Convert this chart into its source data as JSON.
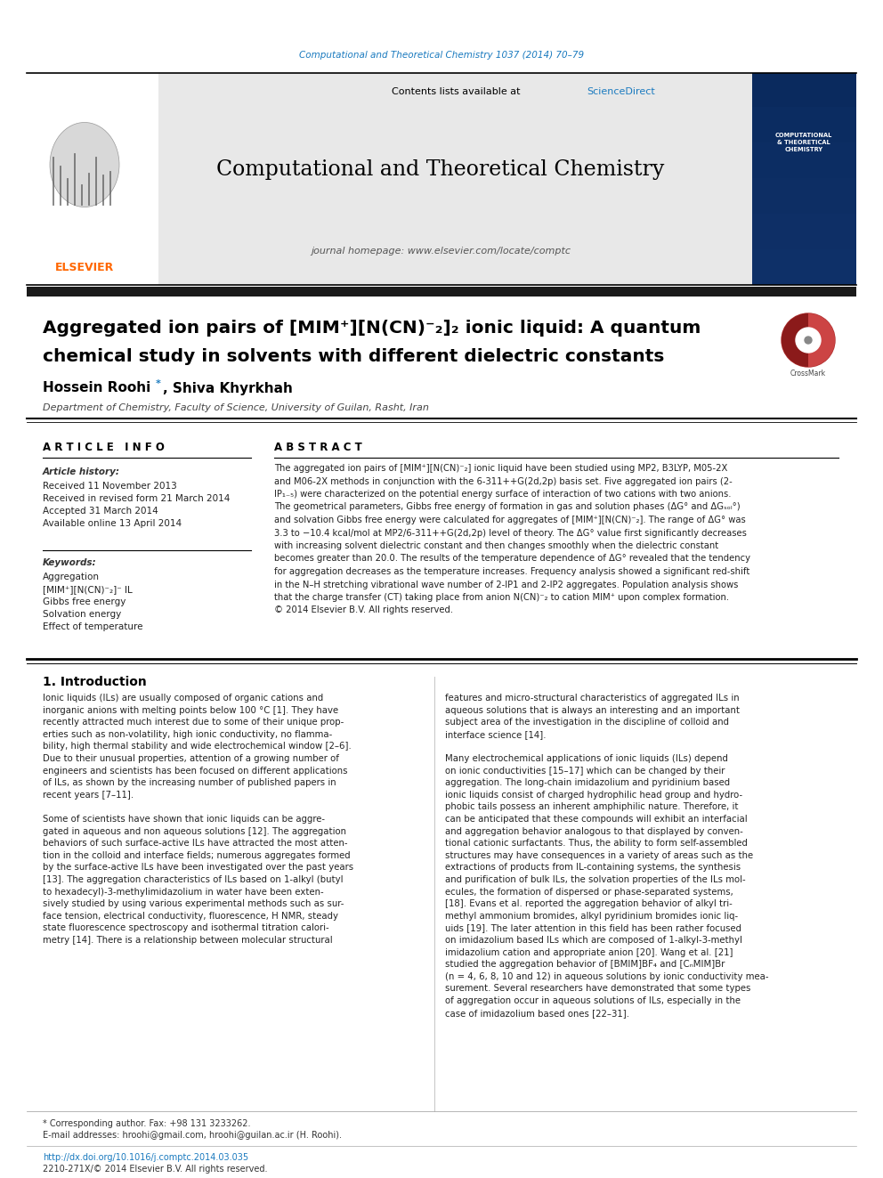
{
  "top_journal_text": "Computational and Theoretical Chemistry 1037 (2014) 70–79",
  "journal_header_text": "Computational and Theoretical Chemistry",
  "contents_text": "Contents lists available at ScienceDirect",
  "homepage_text": "journal homepage: www.elsevier.com/locate/comptc",
  "elsevier_color": "#FF6600",
  "sciencedirect_color": "#1a7abf",
  "header_bg": "#e8e8e8",
  "black_bar_color": "#1a1a1a",
  "title_line1": "Aggregated ion pairs of [MIM⁺][N(CN)⁻₂]₂ ionic liquid: A quantum",
  "title_line2": "chemical study in solvents with different dielectric constants",
  "authors_bold": "Hossein Roohi ",
  "authors_rest": ", Shiva Khyrkhah",
  "affiliation": "Department of Chemistry, Faculty of Science, University of Guilan, Rasht, Iran",
  "article_info_header": "A R T I C L E   I N F O",
  "abstract_header": "A B S T R A C T",
  "article_history_label": "Article history:",
  "received_text": "Received 11 November 2013",
  "revised_text": "Received in revised form 21 March 2014",
  "accepted_text": "Accepted 31 March 2014",
  "available_text": "Available online 13 April 2014",
  "keywords_label": "Keywords:",
  "keyword1": "Aggregation",
  "keyword2": "[MIM⁺][N(CN)⁻₂]⁻ IL",
  "keyword3": "Gibbs free energy",
  "keyword4": "Solvation energy",
  "keyword5": "Effect of temperature",
  "footnote_star": "* Corresponding author. Fax: +98 131 3233262.",
  "footnote_email": "E-mail addresses: hroohi@gmail.com, hroohi@guilan.ac.ir (H. Roohi).",
  "doi_text": "http://dx.doi.org/10.1016/j.comptc.2014.03.035",
  "issn_text": "2210-271X/© 2014 Elsevier B.V. All rights reserved.",
  "top_text_color": "#1a7abf",
  "bg_color": "#ffffff",
  "abstract_lines": [
    "The aggregated ion pairs of [MIM⁺][N(CN)⁻₂] ionic liquid have been studied using MP2, B3LYP, M05-2X",
    "and M06-2X methods in conjunction with the 6-311++G(2d,2p) basis set. Five aggregated ion pairs (2-",
    "IP₁₋₅) were characterized on the potential energy surface of interaction of two cations with two anions.",
    "The geometrical parameters, Gibbs free energy of formation in gas and solution phases (ΔG° and ΔGₛₒₗ°)",
    "and solvation Gibbs free energy were calculated for aggregates of [MIM⁺][N(CN)⁻₂]. The range of ΔG° was",
    "3.3 to −10.4 kcal/mol at MP2/6-311++G(2d,2p) level of theory. The ΔG° value first significantly decreases",
    "with increasing solvent dielectric constant and then changes smoothly when the dielectric constant",
    "becomes greater than 20.0. The results of the temperature dependence of ΔG° revealed that the tendency",
    "for aggregation decreases as the temperature increases. Frequency analysis showed a significant red-shift",
    "in the N–H stretching vibrational wave number of 2-IP1 and 2-IP2 aggregates. Population analysis shows",
    "that the charge transfer (CT) taking place from anion N(CN)⁻₂ to cation MIM⁺ upon complex formation.",
    "© 2014 Elsevier B.V. All rights reserved."
  ],
  "intro_header": "1. Introduction",
  "intro_col1_lines": [
    "Ionic liquids (ILs) are usually composed of organic cations and",
    "inorganic anions with melting points below 100 °C [1]. They have",
    "recently attracted much interest due to some of their unique prop-",
    "erties such as non-volatility, high ionic conductivity, no flamma-",
    "bility, high thermal stability and wide electrochemical window [2–6].",
    "Due to their unusual properties, attention of a growing number of",
    "engineers and scientists has been focused on different applications",
    "of ILs, as shown by the increasing number of published papers in",
    "recent years [7–11].",
    "",
    "Some of scientists have shown that ionic liquids can be aggre-",
    "gated in aqueous and non aqueous solutions [12]. The aggregation",
    "behaviors of such surface-active ILs have attracted the most atten-",
    "tion in the colloid and interface fields; numerous aggregates formed",
    "by the surface-active ILs have been investigated over the past years",
    "[13]. The aggregation characteristics of ILs based on 1-alkyl (butyl",
    "to hexadecyl)-3-methylimidazolium in water have been exten-",
    "sively studied by using various experimental methods such as sur-",
    "face tension, electrical conductivity, fluorescence, H NMR, steady",
    "state fluorescence spectroscopy and isothermal titration calori-",
    "metry [14]. There is a relationship between molecular structural"
  ],
  "intro_col2_lines": [
    "features and micro-structural characteristics of aggregated ILs in",
    "aqueous solutions that is always an interesting and an important",
    "subject area of the investigation in the discipline of colloid and",
    "interface science [14].",
    "",
    "Many electrochemical applications of ionic liquids (ILs) depend",
    "on ionic conductivities [15–17] which can be changed by their",
    "aggregation. The long-chain imidazolium and pyridinium based",
    "ionic liquids consist of charged hydrophilic head group and hydro-",
    "phobic tails possess an inherent amphiphilic nature. Therefore, it",
    "can be anticipated that these compounds will exhibit an interfacial",
    "and aggregation behavior analogous to that displayed by conven-",
    "tional cationic surfactants. Thus, the ability to form self-assembled",
    "structures may have consequences in a variety of areas such as the",
    "extractions of products from IL-containing systems, the synthesis",
    "and purification of bulk ILs, the solvation properties of the ILs mol-",
    "ecules, the formation of dispersed or phase-separated systems,",
    "[18]. Evans et al. reported the aggregation behavior of alkyl tri-",
    "methyl ammonium bromides, alkyl pyridinium bromides ionic liq-",
    "uids [19]. The later attention in this field has been rather focused",
    "on imidazolium based ILs which are composed of 1-alkyl-3-methyl",
    "imidazolium cation and appropriate anion [20]. Wang et al. [21]",
    "studied the aggregation behavior of [BMIM]BF₄ and [CₙMIM]Br",
    "(n = 4, 6, 8, 10 and 12) in aqueous solutions by ionic conductivity mea-",
    "surement. Several researchers have demonstrated that some types",
    "of aggregation occur in aqueous solutions of ILs, especially in the",
    "case of imidazolium based ones [22–31]."
  ]
}
